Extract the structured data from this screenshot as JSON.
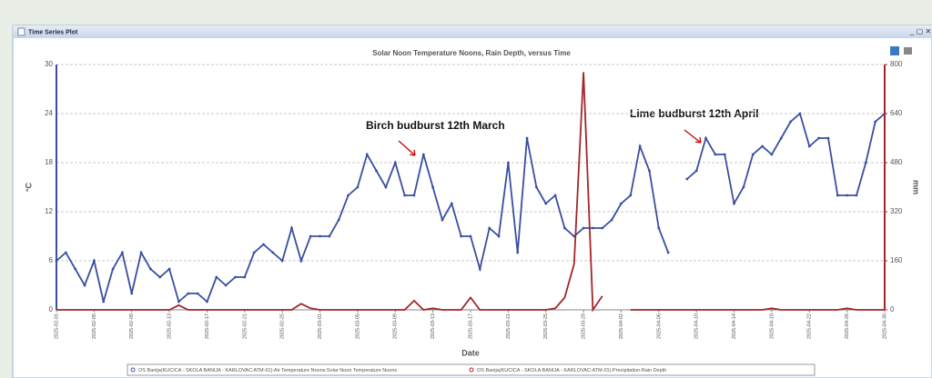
{
  "window_title": "Time Series Plot",
  "chart_data": {
    "type": "line",
    "title": "Solar Noon Temperature Noons, Rain Depth, versus Time",
    "xlabel": "Date",
    "ylabel": "°C",
    "y2label": "mm",
    "x": [
      "2025-02-01",
      "2025-02-02",
      "2025-02-03",
      "2025-02-04",
      "2025-02-05",
      "2025-02-06",
      "2025-02-07",
      "2025-02-08",
      "2025-02-09",
      "2025-02-10",
      "2025-02-11",
      "2025-02-12",
      "2025-02-13",
      "2025-02-14",
      "2025-02-15",
      "2025-02-16",
      "2025-02-17",
      "2025-02-18",
      "2025-02-19",
      "2025-02-20",
      "2025-02-21",
      "2025-02-22",
      "2025-02-23",
      "2025-02-24",
      "2025-02-25",
      "2025-02-26",
      "2025-02-27",
      "2025-02-28",
      "2025-03-01",
      "2025-03-02",
      "2025-03-03",
      "2025-03-04",
      "2025-03-05",
      "2025-03-06",
      "2025-03-07",
      "2025-03-08",
      "2025-03-09",
      "2025-03-10",
      "2025-03-11",
      "2025-03-12",
      "2025-03-13",
      "2025-03-14",
      "2025-03-15",
      "2025-03-16",
      "2025-03-17",
      "2025-03-18",
      "2025-03-19",
      "2025-03-20",
      "2025-03-21",
      "2025-03-22",
      "2025-03-23",
      "2025-03-24",
      "2025-03-25",
      "2025-03-26",
      "2025-03-27",
      "2025-03-28",
      "2025-03-29",
      "2025-03-30",
      "2025-03-31",
      "2025-04-01",
      "2025-04-02",
      "2025-04-03",
      "2025-04-04",
      "2025-04-05",
      "2025-04-06",
      "2025-04-07",
      "2025-04-08",
      "2025-04-09",
      "2025-04-10",
      "2025-04-11",
      "2025-04-12",
      "2025-04-13",
      "2025-04-14",
      "2025-04-15",
      "2025-04-16",
      "2025-04-17",
      "2025-04-18",
      "2025-04-19",
      "2025-04-20",
      "2025-04-21",
      "2025-04-22",
      "2025-04-23",
      "2025-04-24",
      "2025-04-25",
      "2025-04-26",
      "2025-04-27",
      "2025-04-28",
      "2025-04-29",
      "2025-04-30"
    ],
    "xticks": [
      "2025-02-01",
      "2025-02-05",
      "2025-02-09",
      "2025-02-13",
      "2025-02-17",
      "2025-02-21",
      "2025-02-25",
      "2025-03-01",
      "2025-03-05",
      "2025-03-09",
      "2025-03-13",
      "2025-03-17",
      "2025-03-21",
      "2025-03-25",
      "2025-03-29",
      "2025-04-02",
      "2025-04-06",
      "2025-04-10",
      "2025-04-14",
      "2025-04-18",
      "2025-04-22",
      "2025-04-26",
      "2025-04-30"
    ],
    "ylim": [
      0,
      30
    ],
    "yticks": [
      0,
      6,
      12,
      18,
      24,
      30
    ],
    "y2lim": [
      0,
      800
    ],
    "y2ticks": [
      0,
      160,
      320,
      480,
      640,
      800
    ],
    "grid": true,
    "series": [
      {
        "name": "OS Banija(KUCICA - SKOLA BANIJA - KARLOVAC:ATM-01):Air Temperature Noons:Solar Noon Temperature Noons",
        "color": "#3a4fa0",
        "axis": "y",
        "values": [
          6,
          7,
          5,
          3,
          6,
          1,
          5,
          7,
          2,
          7,
          5,
          4,
          5,
          1,
          2,
          2,
          1,
          4,
          3,
          4,
          4,
          7,
          8,
          7,
          6,
          10,
          6,
          9,
          9,
          9,
          11,
          14,
          15,
          19,
          17,
          15,
          18,
          14,
          14,
          19,
          15,
          11,
          13,
          9,
          9,
          5,
          10,
          9,
          18,
          7,
          21,
          15,
          13,
          14,
          10,
          9,
          10,
          10,
          10,
          11,
          13,
          14,
          20,
          17,
          10,
          7,
          null,
          16,
          17,
          21,
          19,
          19,
          13,
          15,
          19,
          20,
          19,
          21,
          23,
          24,
          20,
          21,
          21,
          14,
          14,
          14,
          18,
          23,
          24
        ]
      },
      {
        "name": "OS Banija(KUCICA - SKOLA BANIJA - KARLOVAC:ATM-01):Precipitation:Rain Depth",
        "color": "#a3262a",
        "axis": "y2",
        "values": [
          0,
          0,
          0,
          0,
          0,
          0,
          0,
          0,
          0,
          0,
          0,
          0,
          0,
          15,
          0,
          0,
          0,
          0,
          0,
          0,
          0,
          0,
          0,
          0,
          0,
          0,
          20,
          5,
          0,
          0,
          0,
          0,
          0,
          0,
          0,
          0,
          0,
          0,
          30,
          0,
          5,
          0,
          0,
          0,
          40,
          0,
          0,
          0,
          0,
          0,
          0,
          0,
          0,
          5,
          40,
          150,
          775,
          0,
          45,
          null,
          null,
          0,
          0,
          0,
          0,
          0,
          0,
          0,
          0,
          0,
          0,
          0,
          0,
          0,
          0,
          0,
          5,
          0,
          0,
          0,
          0,
          0,
          0,
          0,
          5,
          0,
          0,
          0,
          0
        ]
      }
    ],
    "annotations": [
      "Birch budburst 12th March",
      "Lime budburst 12th April"
    ]
  }
}
